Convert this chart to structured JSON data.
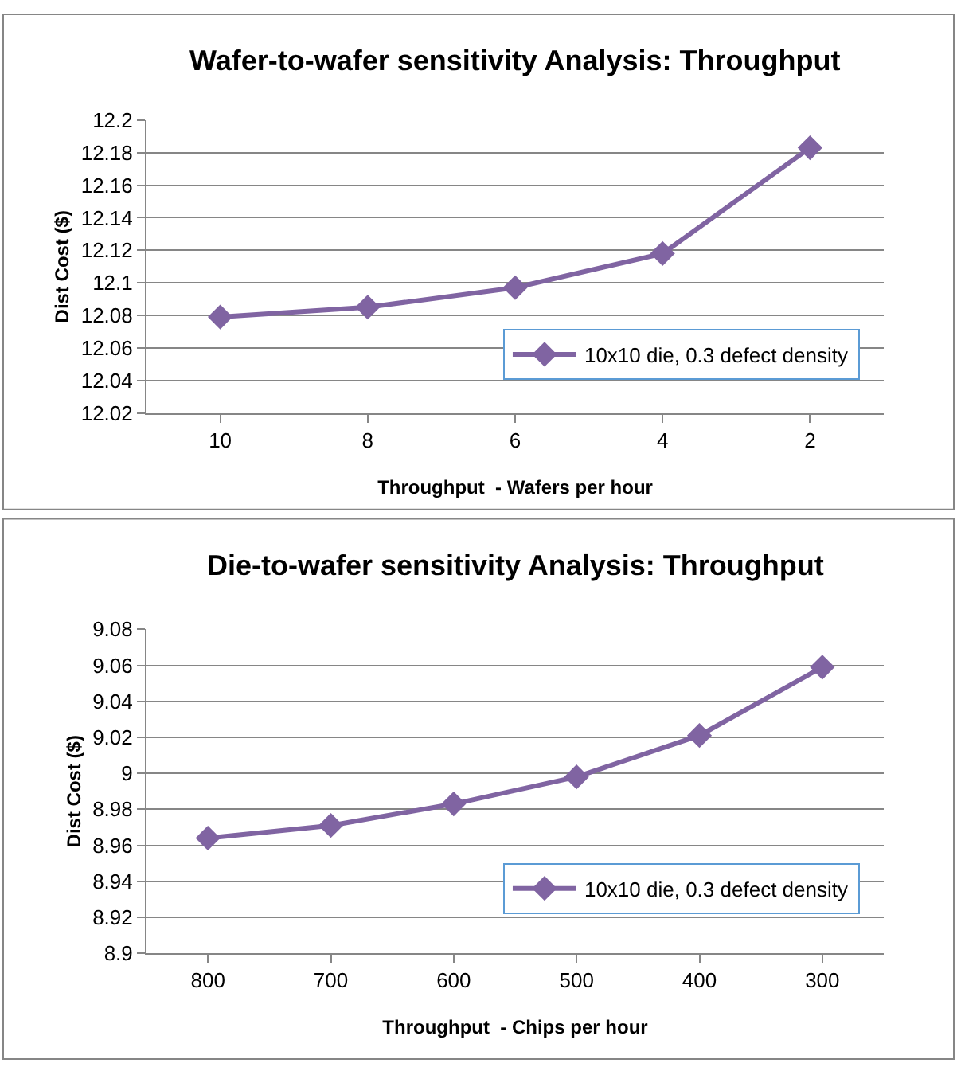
{
  "chart_data": [
    {
      "type": "line",
      "title": "Wafer-to-wafer sensitivity Analysis: Throughput",
      "xlabel": "Throughput  - Wafers per hour",
      "ylabel": "Dist Cost ($)",
      "categories": [
        "10",
        "8",
        "6",
        "4",
        "2"
      ],
      "series": [
        {
          "name": "10x10 die, 0.3 defect density",
          "color": "#8064a2",
          "values": [
            12.079,
            12.085,
            12.097,
            12.118,
            12.183
          ]
        }
      ],
      "ylim": [
        12.02,
        12.2
      ],
      "yticks": [
        12.02,
        12.04,
        12.06,
        12.08,
        12.1,
        12.12,
        12.14,
        12.16,
        12.18,
        12.2
      ],
      "grid": "y",
      "legend": "bottom right",
      "marker": "diamond",
      "line_style": "solid"
    },
    {
      "type": "line",
      "title": "Die-to-wafer sensitivity Analysis: Throughput",
      "xlabel": "Throughput  - Chips per hour",
      "ylabel": "Dist Cost ($)",
      "categories": [
        "800",
        "700",
        "600",
        "500",
        "400",
        "300"
      ],
      "series": [
        {
          "name": "10x10 die, 0.3 defect density",
          "color": "#8064a2",
          "values": [
            8.964,
            8.971,
            8.983,
            8.998,
            9.021,
            9.059
          ]
        }
      ],
      "ylim": [
        8.9,
        9.08
      ],
      "yticks": [
        8.9,
        8.92,
        8.94,
        8.96,
        8.98,
        9,
        9.02,
        9.04,
        9.06,
        9.08
      ],
      "grid": "y",
      "legend": "bottom right",
      "marker": "diamond",
      "line_style": "solid"
    }
  ]
}
